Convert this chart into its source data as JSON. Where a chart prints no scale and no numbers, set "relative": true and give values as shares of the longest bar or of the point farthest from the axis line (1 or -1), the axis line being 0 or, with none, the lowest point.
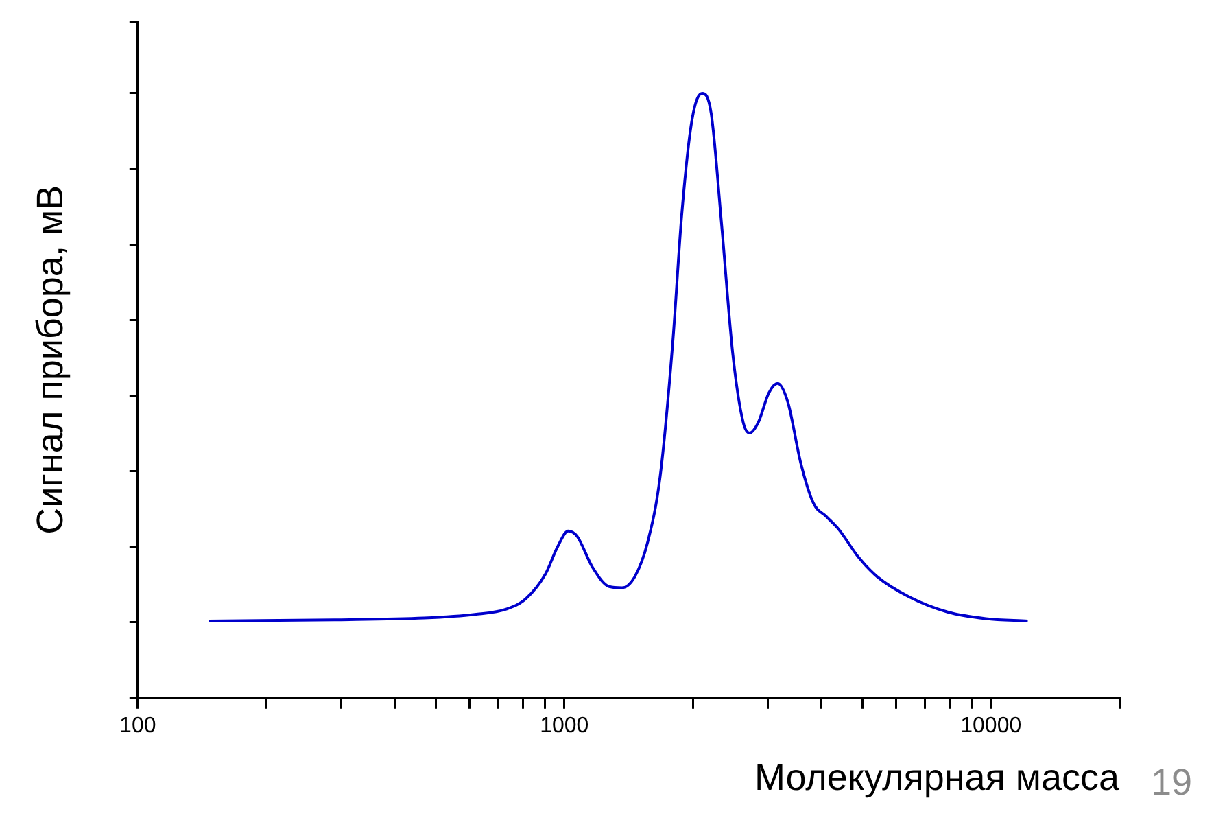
{
  "chart_data": {
    "type": "line",
    "relative": true,
    "xlabel": "Молекулярная масса",
    "ylabel": "Сигнал прибора, мВ",
    "log": "x",
    "xlim": [
      100,
      20000
    ],
    "xticks": [
      100,
      {
        "value": 200,
        "label": null
      },
      {
        "value": 300,
        "label": null
      },
      {
        "value": 400,
        "label": null
      },
      {
        "value": 500,
        "label": null
      },
      {
        "value": 600,
        "label": null
      },
      {
        "value": 700,
        "label": null
      },
      {
        "value": 800,
        "label": null
      },
      {
        "value": 900,
        "label": null
      },
      1000,
      {
        "value": 2000,
        "label": null
      },
      {
        "value": 3000,
        "label": null
      },
      {
        "value": 4000,
        "label": null
      },
      {
        "value": 5000,
        "label": null
      },
      {
        "value": 6000,
        "label": null
      },
      {
        "value": 7000,
        "label": null
      },
      {
        "value": 8000,
        "label": null
      },
      {
        "value": 9000,
        "label": null
      },
      10000,
      {
        "value": 20000,
        "label": null
      }
    ],
    "tick_labels": "x",
    "grid": false,
    "legend": false,
    "marker": "none",
    "line_style": "solid",
    "series": [
      {
        "color": "#0000cc",
        "x": [
          147,
          289,
          469,
          617,
          733,
          813,
          902,
          966,
          1021,
          1072,
          1164,
          1274,
          1365,
          1462,
          1566,
          1678,
          1796,
          1885,
          1992,
          2105,
          2209,
          2333,
          2484,
          2625,
          2717,
          2851,
          3014,
          3162,
          3342,
          3581,
          3837,
          4112,
          4406,
          4887,
          5420,
          6430,
          7910,
          9730,
          12200
        ],
        "values": [
          0.127,
          0.129,
          0.132,
          0.138,
          0.147,
          0.164,
          0.204,
          0.251,
          0.276,
          0.267,
          0.216,
          0.184,
          0.182,
          0.2,
          0.256,
          0.367,
          0.589,
          0.8,
          0.956,
          1.0,
          0.967,
          0.789,
          0.567,
          0.456,
          0.438,
          0.456,
          0.504,
          0.52,
          0.489,
          0.389,
          0.322,
          0.3,
          0.278,
          0.233,
          0.2,
          0.167,
          0.142,
          0.131,
          0.127
        ]
      }
    ],
    "annotations": [
      "19"
    ]
  }
}
